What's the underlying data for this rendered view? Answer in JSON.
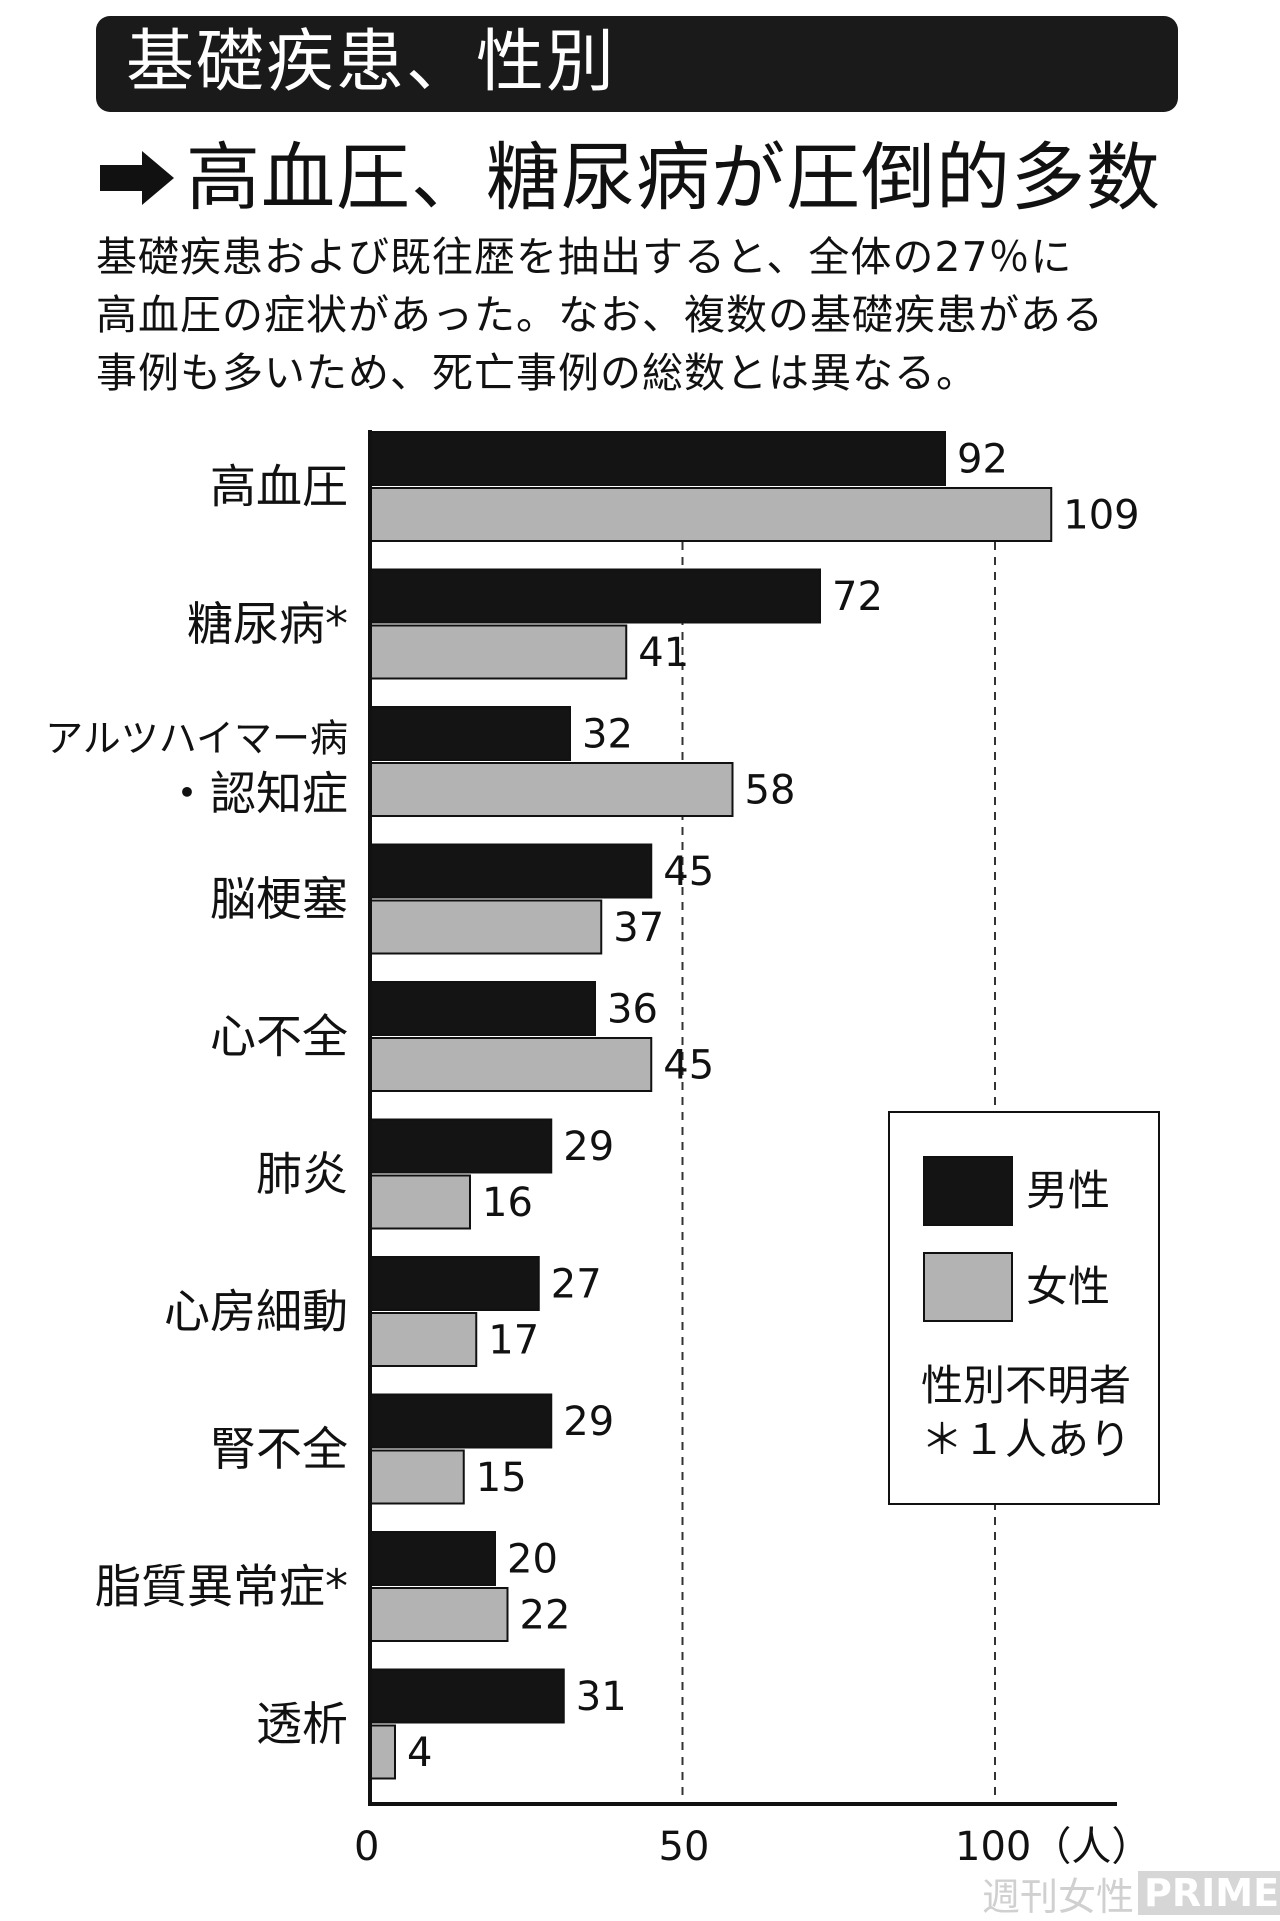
{
  "header": {
    "title": "基礎疾患、性別",
    "subtitle": "高血圧、糖尿病が圧倒的多数",
    "arrow_icon": "right-arrow-icon",
    "description": [
      "基礎疾患および既往歴を抽出すると、全体の27％に",
      "高血圧の症状があった。なお、複数の基礎疾患がある",
      "事例も多いため、死亡事例の総数とは異なる。"
    ]
  },
  "chart_data": {
    "type": "bar",
    "orientation": "horizontal",
    "categories": [
      [
        "高血圧"
      ],
      [
        "糖尿病*"
      ],
      [
        "アルツハイマー病",
        "・認知症"
      ],
      [
        "脳梗塞"
      ],
      [
        "心不全"
      ],
      [
        "肺炎"
      ],
      [
        "心房細動"
      ],
      [
        "腎不全"
      ],
      [
        "脂質異常症*"
      ],
      [
        "透析"
      ]
    ],
    "series": [
      {
        "name": "男性",
        "color": "#141414",
        "values": [
          92,
          72,
          32,
          45,
          36,
          29,
          27,
          29,
          20,
          31
        ]
      },
      {
        "name": "女性",
        "color": "#b3b3b3",
        "values": [
          109,
          41,
          58,
          37,
          45,
          16,
          17,
          15,
          22,
          4
        ]
      }
    ],
    "xlim": [
      0,
      120
    ],
    "x_ticks": [
      "0",
      "50",
      "100（人）"
    ],
    "gridlines": [
      50,
      100
    ],
    "grid_style": "dashed",
    "legend_placement": "right",
    "legend_note": [
      "性別不明者",
      "＊１人あり"
    ]
  },
  "watermark": {
    "left": "週刊女性",
    "right": "PRIME"
  }
}
